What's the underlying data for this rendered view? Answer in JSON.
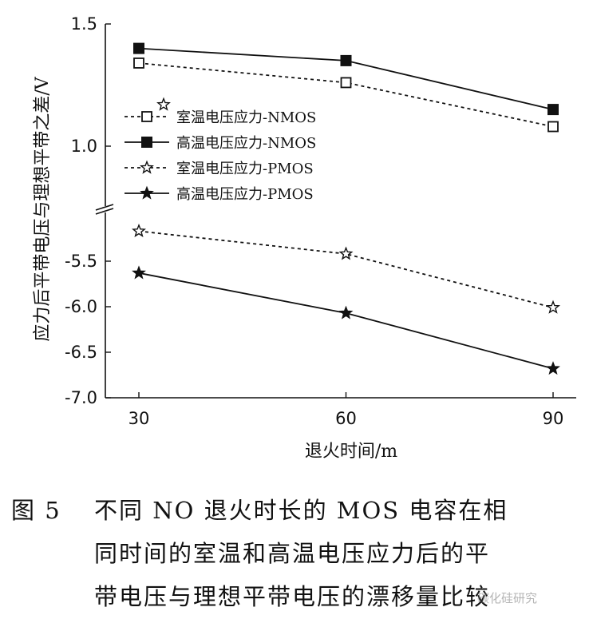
{
  "chart_data": {
    "type": "line",
    "ylabel": "应力后平带电压与理想平带之差/V",
    "xlabel": "退火时间/m",
    "x": [
      30,
      60,
      90
    ],
    "x_ticks": [
      "30",
      "60",
      "90"
    ],
    "y_ticks_upper": [
      "1.5",
      "1.0"
    ],
    "y_ticks_lower": [
      "-5.5",
      "-6.0",
      "-6.5",
      "-7.0"
    ],
    "y_axis_broken": true,
    "ylim_upper": [
      0.8,
      1.5
    ],
    "ylim_lower": [
      -7.0,
      -5.0
    ],
    "legend_position": "top-left",
    "series": [
      {
        "name": "室温电压应力-NMOS",
        "marker": "open-square",
        "line": "dashed",
        "values": [
          1.34,
          1.26,
          1.08
        ]
      },
      {
        "name": "高温电压应力-NMOS",
        "marker": "filled-square",
        "line": "solid",
        "values": [
          1.4,
          1.35,
          1.15
        ]
      },
      {
        "name": "室温电压应力-PMOS",
        "marker": "open-star",
        "line": "dashed",
        "values": [
          -5.17,
          -5.42,
          -6.01
        ]
      },
      {
        "name": "高温电压应力-PMOS",
        "marker": "filled-star",
        "line": "solid",
        "values": [
          -5.63,
          -6.07,
          -6.68
        ]
      }
    ]
  },
  "caption": {
    "figure_number": "图 5",
    "lines": [
      "不同 NO 退火时长的 MOS 电容在相",
      "同时间的室温和高温电压应力后的平",
      "带电压与理想平带电压的漂移量比较"
    ]
  },
  "watermark": "碳化硅研究"
}
